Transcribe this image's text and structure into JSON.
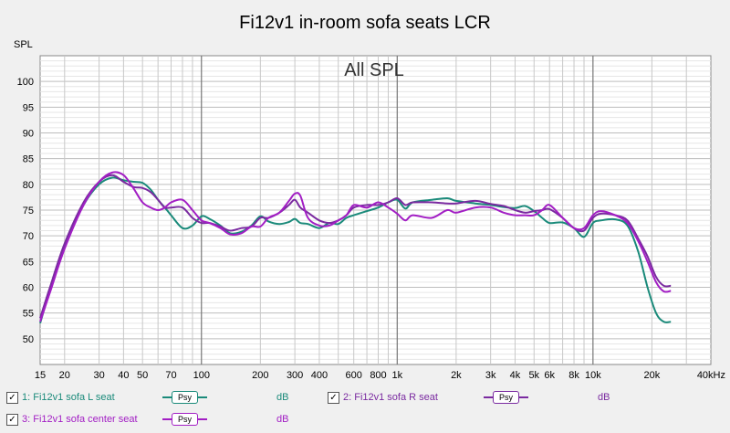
{
  "chart_data": {
    "type": "line",
    "title": "Fi12v1 in-room sofa seats LCR",
    "subtitle": "All SPL",
    "ylabel": "SPL",
    "xlabel": "",
    "xscale": "log",
    "xlim": [
      15,
      40000
    ],
    "ylim": [
      45,
      105
    ],
    "x_ticks": [
      15,
      20,
      30,
      40,
      50,
      70,
      100,
      200,
      300,
      400,
      600,
      800,
      1000,
      2000,
      3000,
      4000,
      5000,
      6000,
      8000,
      10000,
      20000,
      40000
    ],
    "x_tick_labels": [
      "15",
      "20",
      "30",
      "40",
      "50",
      "70",
      "100",
      "200",
      "300",
      "400",
      "600",
      "800",
      "1k",
      "2k",
      "3k",
      "4k",
      "5k",
      "6k",
      "8k",
      "10k",
      "20k",
      "40kHz"
    ],
    "y_ticks": [
      50,
      55,
      60,
      65,
      70,
      75,
      80,
      85,
      90,
      95,
      100
    ],
    "series": [
      {
        "name": "1: Fi12v1 sofa L seat",
        "color": "#1a8a7a",
        "points": [
          [
            15,
            53
          ],
          [
            17,
            60
          ],
          [
            20,
            68
          ],
          [
            25,
            76
          ],
          [
            30,
            80
          ],
          [
            35,
            81.3
          ],
          [
            40,
            80.8
          ],
          [
            45,
            80.5
          ],
          [
            50,
            80.3
          ],
          [
            55,
            79
          ],
          [
            60,
            77
          ],
          [
            65,
            75.5
          ],
          [
            70,
            74
          ],
          [
            80,
            71.5
          ],
          [
            90,
            72
          ],
          [
            100,
            73.8
          ],
          [
            110,
            73.3
          ],
          [
            125,
            72
          ],
          [
            140,
            70.5
          ],
          [
            160,
            70.8
          ],
          [
            180,
            72
          ],
          [
            200,
            73.8
          ],
          [
            220,
            72.8
          ],
          [
            250,
            72.3
          ],
          [
            280,
            72.7
          ],
          [
            300,
            73.3
          ],
          [
            320,
            72.5
          ],
          [
            350,
            72.3
          ],
          [
            400,
            71.5
          ],
          [
            450,
            72.5
          ],
          [
            500,
            72.3
          ],
          [
            550,
            73.5
          ],
          [
            600,
            74
          ],
          [
            700,
            74.8
          ],
          [
            800,
            75.5
          ],
          [
            900,
            76.5
          ],
          [
            1000,
            77
          ],
          [
            1100,
            75.3
          ],
          [
            1200,
            76.5
          ],
          [
            1500,
            77
          ],
          [
            1800,
            77.3
          ],
          [
            2000,
            76.8
          ],
          [
            2500,
            76.3
          ],
          [
            3000,
            76
          ],
          [
            3500,
            75.6
          ],
          [
            4000,
            75.4
          ],
          [
            4500,
            75.8
          ],
          [
            5000,
            74.8
          ],
          [
            5500,
            73.5
          ],
          [
            6000,
            72.5
          ],
          [
            7000,
            72.6
          ],
          [
            8000,
            71.5
          ],
          [
            9000,
            69.8
          ],
          [
            10000,
            72.5
          ],
          [
            11000,
            73
          ],
          [
            13000,
            73.2
          ],
          [
            15000,
            72
          ],
          [
            17000,
            67
          ],
          [
            19000,
            60
          ],
          [
            21000,
            55
          ],
          [
            23000,
            53.3
          ],
          [
            25000,
            53.3
          ]
        ]
      },
      {
        "name": "2: Fi12v1 sofa R seat",
        "color": "#7a2aa0",
        "points": [
          [
            15,
            54
          ],
          [
            17,
            60.5
          ],
          [
            20,
            68.5
          ],
          [
            25,
            76.5
          ],
          [
            30,
            80.5
          ],
          [
            35,
            81.8
          ],
          [
            40,
            80.5
          ],
          [
            45,
            79.5
          ],
          [
            50,
            79.3
          ],
          [
            55,
            78.5
          ],
          [
            60,
            77
          ],
          [
            65,
            75.5
          ],
          [
            70,
            75.5
          ],
          [
            80,
            75.5
          ],
          [
            90,
            73.5
          ],
          [
            100,
            72.5
          ],
          [
            110,
            72.5
          ],
          [
            125,
            71.8
          ],
          [
            140,
            71
          ],
          [
            160,
            71.5
          ],
          [
            180,
            71.8
          ],
          [
            200,
            73.5
          ],
          [
            220,
            73.5
          ],
          [
            250,
            74.5
          ],
          [
            280,
            76
          ],
          [
            300,
            77
          ],
          [
            320,
            75.5
          ],
          [
            350,
            74.5
          ],
          [
            400,
            73
          ],
          [
            450,
            72.5
          ],
          [
            500,
            73
          ],
          [
            550,
            74
          ],
          [
            600,
            75.5
          ],
          [
            700,
            76
          ],
          [
            800,
            76
          ],
          [
            900,
            76.5
          ],
          [
            1000,
            77.3
          ],
          [
            1100,
            76
          ],
          [
            1200,
            76.5
          ],
          [
            1500,
            76.5
          ],
          [
            1800,
            76.3
          ],
          [
            2000,
            76.3
          ],
          [
            2500,
            76.8
          ],
          [
            3000,
            76.2
          ],
          [
            3500,
            75.8
          ],
          [
            4000,
            75
          ],
          [
            4500,
            74.5
          ],
          [
            5000,
            74.8
          ],
          [
            5500,
            75
          ],
          [
            6000,
            75.2
          ],
          [
            7000,
            73.5
          ],
          [
            8000,
            71.5
          ],
          [
            9000,
            71
          ],
          [
            10000,
            73.5
          ],
          [
            11000,
            74.3
          ],
          [
            13000,
            74
          ],
          [
            15000,
            73
          ],
          [
            17000,
            69.5
          ],
          [
            19000,
            66
          ],
          [
            21000,
            62
          ],
          [
            23000,
            60.3
          ],
          [
            25000,
            60.3
          ]
        ]
      },
      {
        "name": "3: Fi12v1 sofa center seat",
        "color": "#a21ec4",
        "points": [
          [
            15,
            53.3
          ],
          [
            17,
            59.5
          ],
          [
            20,
            67.5
          ],
          [
            25,
            76
          ],
          [
            30,
            80.5
          ],
          [
            35,
            82.3
          ],
          [
            40,
            81.8
          ],
          [
            45,
            79.2
          ],
          [
            50,
            76.5
          ],
          [
            55,
            75.5
          ],
          [
            60,
            75
          ],
          [
            65,
            75.5
          ],
          [
            70,
            76.5
          ],
          [
            80,
            77
          ],
          [
            90,
            75
          ],
          [
            100,
            73
          ],
          [
            110,
            72.5
          ],
          [
            125,
            71.5
          ],
          [
            140,
            70.3
          ],
          [
            160,
            70.5
          ],
          [
            180,
            71.8
          ],
          [
            200,
            71.8
          ],
          [
            220,
            73.5
          ],
          [
            250,
            74.5
          ],
          [
            280,
            76.8
          ],
          [
            300,
            78.2
          ],
          [
            320,
            77.8
          ],
          [
            350,
            73.5
          ],
          [
            400,
            72
          ],
          [
            450,
            72
          ],
          [
            500,
            73
          ],
          [
            550,
            74
          ],
          [
            600,
            76
          ],
          [
            700,
            75.5
          ],
          [
            800,
            76.5
          ],
          [
            900,
            75.5
          ],
          [
            1000,
            74.3
          ],
          [
            1100,
            73
          ],
          [
            1200,
            74
          ],
          [
            1500,
            73.5
          ],
          [
            1800,
            75
          ],
          [
            2000,
            74.5
          ],
          [
            2500,
            75.5
          ],
          [
            3000,
            75.5
          ],
          [
            3500,
            74.5
          ],
          [
            4000,
            74
          ],
          [
            4500,
            74
          ],
          [
            5000,
            74
          ],
          [
            5500,
            75
          ],
          [
            6000,
            76
          ],
          [
            7000,
            73.5
          ],
          [
            8000,
            71.5
          ],
          [
            9000,
            71.5
          ],
          [
            10000,
            74
          ],
          [
            11000,
            74.8
          ],
          [
            13000,
            74
          ],
          [
            15000,
            72.5
          ],
          [
            17000,
            69
          ],
          [
            19000,
            65
          ],
          [
            21000,
            61
          ],
          [
            23000,
            59.2
          ],
          [
            25000,
            59.3
          ]
        ]
      }
    ]
  },
  "legend": [
    {
      "check": "✓",
      "label": "1: Fi12v1 sofa L seat",
      "tag": "Psy",
      "unit": "dB",
      "color": "#1a8a7a"
    },
    {
      "check": "✓",
      "label": "2: Fi12v1 sofa R seat",
      "tag": "Psy",
      "unit": "dB",
      "color": "#7a2aa0"
    },
    {
      "check": "✓",
      "label": "3: Fi12v1 sofa center seat",
      "tag": "Psy",
      "unit": "dB",
      "color": "#a21ec4"
    }
  ]
}
